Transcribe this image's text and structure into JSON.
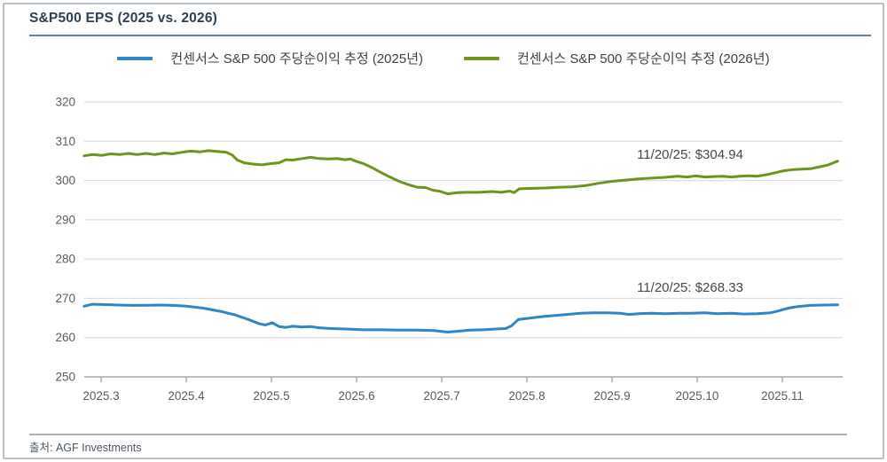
{
  "header": {
    "title": "S&P500 EPS (2025 vs. 2026)"
  },
  "footer": {
    "source": "출처: AGF Investments"
  },
  "chart_data": {
    "type": "line",
    "title": "S&P500 EPS (2025 vs. 2026)",
    "xlabel": "",
    "ylabel": "",
    "ylim": [
      250,
      320
    ],
    "xlim_months": [
      2.8,
      11.72
    ],
    "grid": "horizontal",
    "legend_position": "top-center",
    "y_ticks": [
      "320",
      "310",
      "300",
      "290",
      "280",
      "270",
      "260",
      "250"
    ],
    "x_ticks": [
      "2025.3",
      "2025.4",
      "2025.5",
      "2025.6",
      "2025.7",
      "2025.8",
      "2025.9",
      "2025.10",
      "2025.11"
    ],
    "annotations": [
      {
        "series": "2026",
        "text": "11/20/25: $304.94"
      },
      {
        "series": "2025",
        "text": "11/20/25: $268.33"
      }
    ],
    "series": [
      {
        "name": "컨센서스 S&P 500 주당순이익 추정 (2025년)",
        "color": "#2e86c6",
        "last_date": "11/20/25",
        "last_value": 268.33,
        "points": [
          [
            2.8,
            268.0
          ],
          [
            2.9,
            268.5
          ],
          [
            3.06,
            268.4
          ],
          [
            3.2,
            268.3
          ],
          [
            3.37,
            268.2
          ],
          [
            3.55,
            268.25
          ],
          [
            3.7,
            268.3
          ],
          [
            3.85,
            268.2
          ],
          [
            4.0,
            268.0
          ],
          [
            4.2,
            267.5
          ],
          [
            4.42,
            266.6
          ],
          [
            4.57,
            265.8
          ],
          [
            4.73,
            264.6
          ],
          [
            4.86,
            263.5
          ],
          [
            4.93,
            263.2
          ],
          [
            5.01,
            263.8
          ],
          [
            5.09,
            262.8
          ],
          [
            5.17,
            262.6
          ],
          [
            5.25,
            262.9
          ],
          [
            5.36,
            262.7
          ],
          [
            5.46,
            262.8
          ],
          [
            5.56,
            262.5
          ],
          [
            5.7,
            262.3
          ],
          [
            5.87,
            262.2
          ],
          [
            6.08,
            262.0
          ],
          [
            6.29,
            262.0
          ],
          [
            6.5,
            261.9
          ],
          [
            6.7,
            261.9
          ],
          [
            6.9,
            261.8
          ],
          [
            7.07,
            261.4
          ],
          [
            7.18,
            261.6
          ],
          [
            7.33,
            261.9
          ],
          [
            7.49,
            262.0
          ],
          [
            7.64,
            262.2
          ],
          [
            7.75,
            262.3
          ],
          [
            7.82,
            263.0
          ],
          [
            7.9,
            264.6
          ],
          [
            8.01,
            264.9
          ],
          [
            8.16,
            265.3
          ],
          [
            8.32,
            265.6
          ],
          [
            8.47,
            265.9
          ],
          [
            8.63,
            266.2
          ],
          [
            8.78,
            266.3
          ],
          [
            8.94,
            266.3
          ],
          [
            9.1,
            266.2
          ],
          [
            9.2,
            265.9
          ],
          [
            9.31,
            266.1
          ],
          [
            9.46,
            266.2
          ],
          [
            9.62,
            266.1
          ],
          [
            9.77,
            266.2
          ],
          [
            9.93,
            266.2
          ],
          [
            10.09,
            266.3
          ],
          [
            10.24,
            266.1
          ],
          [
            10.4,
            266.2
          ],
          [
            10.55,
            266.0
          ],
          [
            10.71,
            266.1
          ],
          [
            10.86,
            266.3
          ],
          [
            10.97,
            266.9
          ],
          [
            11.07,
            267.5
          ],
          [
            11.18,
            267.9
          ],
          [
            11.33,
            268.2
          ],
          [
            11.49,
            268.3
          ],
          [
            11.65,
            268.33
          ]
        ]
      },
      {
        "name": "컨센서스 S&P 500 주당순이익 추정 (2026년)",
        "color": "#6f941d",
        "last_date": "11/20/25",
        "last_value": 304.94,
        "points": [
          [
            2.8,
            306.3
          ],
          [
            2.9,
            306.6
          ],
          [
            3.01,
            306.4
          ],
          [
            3.11,
            306.8
          ],
          [
            3.22,
            306.6
          ],
          [
            3.32,
            306.9
          ],
          [
            3.42,
            306.6
          ],
          [
            3.53,
            306.9
          ],
          [
            3.63,
            306.6
          ],
          [
            3.74,
            307.0
          ],
          [
            3.84,
            306.8
          ],
          [
            3.95,
            307.2
          ],
          [
            4.05,
            307.5
          ],
          [
            4.16,
            307.3
          ],
          [
            4.26,
            307.6
          ],
          [
            4.36,
            307.4
          ],
          [
            4.47,
            307.2
          ],
          [
            4.54,
            306.5
          ],
          [
            4.6,
            305.2
          ],
          [
            4.68,
            304.5
          ],
          [
            4.78,
            304.2
          ],
          [
            4.89,
            304.0
          ],
          [
            4.99,
            304.3
          ],
          [
            5.09,
            304.5
          ],
          [
            5.17,
            305.3
          ],
          [
            5.25,
            305.2
          ],
          [
            5.36,
            305.6
          ],
          [
            5.46,
            305.9
          ],
          [
            5.56,
            305.6
          ],
          [
            5.67,
            305.5
          ],
          [
            5.77,
            305.6
          ],
          [
            5.87,
            305.3
          ],
          [
            5.93,
            305.5
          ],
          [
            5.98,
            305.0
          ],
          [
            6.08,
            304.3
          ],
          [
            6.19,
            303.2
          ],
          [
            6.29,
            302.0
          ],
          [
            6.4,
            300.8
          ],
          [
            6.5,
            299.8
          ],
          [
            6.6,
            299.0
          ],
          [
            6.71,
            298.3
          ],
          [
            6.81,
            298.2
          ],
          [
            6.9,
            297.5
          ],
          [
            6.97,
            297.3
          ],
          [
            7.07,
            296.6
          ],
          [
            7.18,
            296.9
          ],
          [
            7.28,
            297.0
          ],
          [
            7.44,
            297.0
          ],
          [
            7.59,
            297.2
          ],
          [
            7.7,
            297.0
          ],
          [
            7.8,
            297.3
          ],
          [
            7.85,
            296.9
          ],
          [
            7.91,
            297.9
          ],
          [
            8.06,
            298.0
          ],
          [
            8.22,
            298.1
          ],
          [
            8.38,
            298.3
          ],
          [
            8.53,
            298.4
          ],
          [
            8.69,
            298.7
          ],
          [
            8.84,
            299.3
          ],
          [
            9.0,
            299.8
          ],
          [
            9.1,
            300.0
          ],
          [
            9.2,
            300.2
          ],
          [
            9.31,
            300.4
          ],
          [
            9.46,
            300.6
          ],
          [
            9.62,
            300.8
          ],
          [
            9.77,
            301.1
          ],
          [
            9.88,
            300.9
          ],
          [
            9.98,
            301.2
          ],
          [
            10.09,
            300.9
          ],
          [
            10.19,
            301.0
          ],
          [
            10.3,
            301.1
          ],
          [
            10.4,
            300.9
          ],
          [
            10.5,
            301.1
          ],
          [
            10.61,
            301.2
          ],
          [
            10.71,
            301.1
          ],
          [
            10.82,
            301.5
          ],
          [
            10.92,
            302.0
          ],
          [
            11.02,
            302.5
          ],
          [
            11.13,
            302.8
          ],
          [
            11.23,
            302.9
          ],
          [
            11.33,
            303.0
          ],
          [
            11.44,
            303.5
          ],
          [
            11.54,
            304.0
          ],
          [
            11.65,
            304.94
          ]
        ]
      }
    ]
  }
}
